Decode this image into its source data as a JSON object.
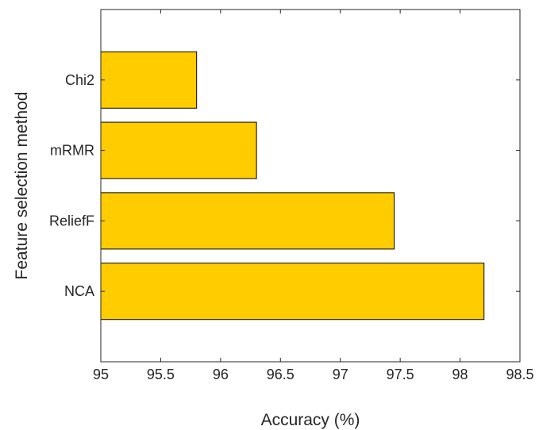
{
  "chart_data": {
    "type": "bar",
    "orientation": "horizontal",
    "title": "",
    "xlabel": "Accuracy (%)",
    "ylabel": "Feature selection method",
    "xlim": [
      95,
      98.5
    ],
    "xticks": [
      "95",
      "95.5",
      "96",
      "96.5",
      "97",
      "97.5",
      "98",
      "98.5"
    ],
    "categories": [
      "NCA",
      "ReliefF",
      "mRMR",
      "Chi2"
    ],
    "values": [
      98.2,
      97.45,
      96.3,
      95.8
    ],
    "bar_color": "#FFCC00",
    "edge_color": "#000000",
    "grid": false,
    "legend": "none"
  }
}
